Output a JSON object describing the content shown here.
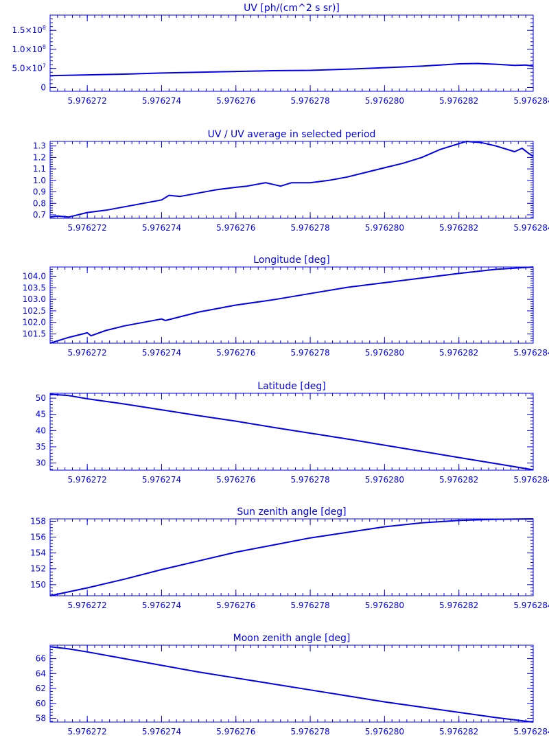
{
  "colors": {
    "axis": "#0000ee",
    "line": "#0000ee",
    "background": "#ffffff"
  },
  "chart_data": [
    {
      "type": "line",
      "title": "UV [ph/(cm^2 s sr)]",
      "xlim": [
        5.976271,
        5.976284
      ],
      "ylim": [
        -10000000,
        190000000
      ],
      "xticks": [
        5.976272,
        5.976274,
        5.976276,
        5.976278,
        5.97628,
        5.976282,
        5.976284
      ],
      "xtick_labels": [
        "5.976272",
        "5.976274",
        "5.976276",
        "5.976278",
        "5.976280",
        "5.976282",
        "5.976284"
      ],
      "yticks": [
        0,
        50000000,
        100000000,
        150000000
      ],
      "ytick_labels": [
        {
          "base": "0",
          "exp": ""
        },
        {
          "base": "5.0×10",
          "exp": "7"
        },
        {
          "base": "1.0×10",
          "exp": "8"
        },
        {
          "base": "1.5×10",
          "exp": "8"
        }
      ],
      "x": [
        5.976271,
        5.976272,
        5.976273,
        5.976274,
        5.976275,
        5.976276,
        5.976277,
        5.976278,
        5.976279,
        5.97628,
        5.976281,
        5.9762815,
        5.976282,
        5.9762825,
        5.976283,
        5.9762835,
        5.9762838,
        5.976284
      ],
      "y": [
        31000000,
        33000000,
        35000000,
        38000000,
        40000000,
        42000000,
        44000000,
        45000000,
        48000000,
        52000000,
        56000000,
        59000000,
        62000000,
        63000000,
        61000000,
        58000000,
        59000000,
        56000000
      ]
    },
    {
      "type": "line",
      "title": "UV / UV average in selected period",
      "xlim": [
        5.976271,
        5.976284
      ],
      "ylim": [
        0.67,
        1.34
      ],
      "xticks": [
        5.976272,
        5.976274,
        5.976276,
        5.976278,
        5.97628,
        5.976282,
        5.976284
      ],
      "xtick_labels": [
        "5.976272",
        "5.976274",
        "5.976276",
        "5.976278",
        "5.976280",
        "5.976282",
        "5.976284"
      ],
      "yticks": [
        0.7,
        0.8,
        0.9,
        1.0,
        1.1,
        1.2,
        1.3
      ],
      "ytick_labels": [
        "0.7",
        "0.8",
        "0.9",
        "1.0",
        "1.1",
        "1.2",
        "1.3"
      ],
      "x": [
        5.976271,
        5.9762712,
        5.9762715,
        5.976272,
        5.9762725,
        5.976273,
        5.9762735,
        5.976274,
        5.9762742,
        5.9762745,
        5.976275,
        5.9762755,
        5.976276,
        5.9762763,
        5.9762768,
        5.9762772,
        5.9762775,
        5.976278,
        5.9762785,
        5.976279,
        5.9762795,
        5.97628,
        5.9762805,
        5.976281,
        5.9762815,
        5.976282,
        5.9762822,
        5.9762826,
        5.976283,
        5.9762835,
        5.9762837,
        5.9762839,
        5.976284
      ],
      "y": [
        0.68,
        0.69,
        0.68,
        0.72,
        0.74,
        0.77,
        0.8,
        0.83,
        0.87,
        0.86,
        0.89,
        0.92,
        0.94,
        0.95,
        0.98,
        0.95,
        0.98,
        0.98,
        1.0,
        1.03,
        1.07,
        1.11,
        1.15,
        1.2,
        1.27,
        1.32,
        1.34,
        1.33,
        1.3,
        1.25,
        1.28,
        1.23,
        1.21
      ]
    },
    {
      "type": "line",
      "title": "Longitude [deg]",
      "xlim": [
        5.976271,
        5.976284
      ],
      "ylim": [
        101.1,
        104.4
      ],
      "xticks": [
        5.976272,
        5.976274,
        5.976276,
        5.976278,
        5.97628,
        5.976282,
        5.976284
      ],
      "xtick_labels": [
        "5.976272",
        "5.976274",
        "5.976276",
        "5.976278",
        "5.976280",
        "5.976282",
        "5.976284"
      ],
      "yticks": [
        101.5,
        102.0,
        102.5,
        103.0,
        103.5,
        104.0
      ],
      "ytick_labels": [
        "101.5",
        "102.0",
        "102.5",
        "103.0",
        "103.5",
        "104.0"
      ],
      "x": [
        5.976271,
        5.9762715,
        5.976272,
        5.9762721,
        5.9762725,
        5.976273,
        5.976274,
        5.9762741,
        5.976275,
        5.976276,
        5.976277,
        5.976278,
        5.976279,
        5.97628,
        5.976281,
        5.976282,
        5.976283,
        5.976284
      ],
      "y": [
        101.1,
        101.35,
        101.55,
        101.42,
        101.65,
        101.85,
        102.15,
        102.08,
        102.45,
        102.75,
        102.98,
        103.25,
        103.52,
        103.72,
        103.92,
        104.12,
        104.3,
        104.4
      ]
    },
    {
      "type": "line",
      "title": "Latitude [deg]",
      "xlim": [
        5.976271,
        5.976284
      ],
      "ylim": [
        27.8,
        51.5
      ],
      "xticks": [
        5.976272,
        5.976274,
        5.976276,
        5.976278,
        5.97628,
        5.976282,
        5.976284
      ],
      "xtick_labels": [
        "5.976272",
        "5.976274",
        "5.976276",
        "5.976278",
        "5.976280",
        "5.976282",
        "5.976284"
      ],
      "yticks": [
        30,
        35,
        40,
        45,
        50
      ],
      "ytick_labels": [
        "30",
        "35",
        "40",
        "45",
        "50"
      ],
      "x": [
        5.976271,
        5.9762715,
        5.976272,
        5.976273,
        5.976274,
        5.976275,
        5.976276,
        5.976277,
        5.976278,
        5.976279,
        5.97628,
        5.976281,
        5.976282,
        5.976283,
        5.976284
      ],
      "y": [
        51.2,
        50.8,
        49.8,
        48.2,
        46.4,
        44.6,
        42.9,
        41.0,
        39.2,
        37.4,
        35.5,
        33.6,
        31.7,
        29.8,
        27.9
      ]
    },
    {
      "type": "line",
      "title": "Sun zenith angle [deg]",
      "xlim": [
        5.976271,
        5.976284
      ],
      "ylim": [
        148.6,
        158.3
      ],
      "xticks": [
        5.976272,
        5.976274,
        5.976276,
        5.976278,
        5.97628,
        5.976282,
        5.976284
      ],
      "xtick_labels": [
        "5.976272",
        "5.976274",
        "5.976276",
        "5.976278",
        "5.976280",
        "5.976282",
        "5.976284"
      ],
      "yticks": [
        150,
        152,
        154,
        156,
        158
      ],
      "ytick_labels": [
        "150",
        "152",
        "154",
        "156",
        "158"
      ],
      "x": [
        5.976271,
        5.976272,
        5.976273,
        5.976274,
        5.976275,
        5.976276,
        5.976277,
        5.976278,
        5.976279,
        5.97628,
        5.976281,
        5.976282,
        5.976283,
        5.976284
      ],
      "y": [
        148.6,
        149.6,
        150.7,
        151.9,
        153.0,
        154.1,
        155.0,
        155.9,
        156.6,
        157.3,
        157.8,
        158.1,
        158.25,
        158.3
      ]
    },
    {
      "type": "line",
      "title": "Moon zenith angle [deg]",
      "xlim": [
        5.976271,
        5.976284
      ],
      "ylim": [
        57.5,
        67.8
      ],
      "xticks": [
        5.976272,
        5.976274,
        5.976276,
        5.976278,
        5.97628,
        5.976282,
        5.976284
      ],
      "xtick_labels": [
        "5.976272",
        "5.976274",
        "5.976276",
        "5.976278",
        "5.976280",
        "5.976282",
        "5.976284"
      ],
      "yticks": [
        58,
        60,
        62,
        64,
        66
      ],
      "ytick_labels": [
        "58",
        "60",
        "62",
        "64",
        "66"
      ],
      "x": [
        5.976271,
        5.9762715,
        5.976272,
        5.976273,
        5.976274,
        5.976275,
        5.976276,
        5.976277,
        5.976278,
        5.976279,
        5.97628,
        5.976281,
        5.976282,
        5.976283,
        5.976284
      ],
      "y": [
        67.6,
        67.3,
        66.9,
        66.0,
        65.1,
        64.2,
        63.4,
        62.6,
        61.8,
        61.0,
        60.2,
        59.5,
        58.8,
        58.1,
        57.5
      ]
    }
  ]
}
